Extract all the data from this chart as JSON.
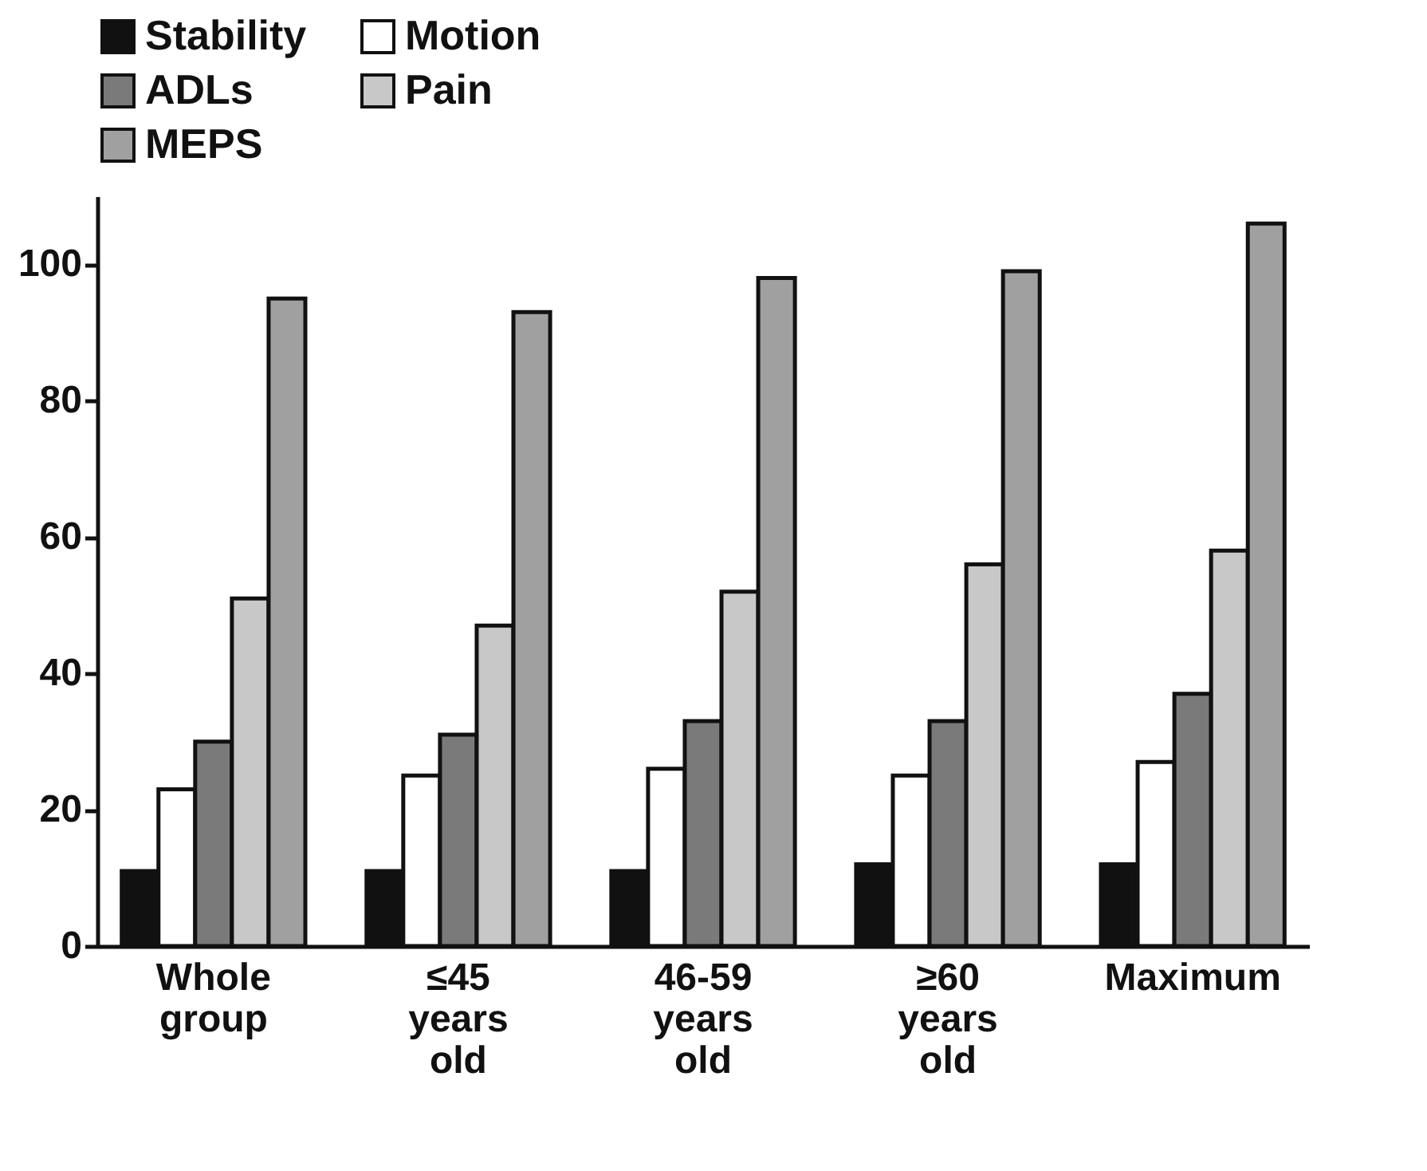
{
  "chart_data": {
    "type": "bar",
    "categories": [
      "Whole group",
      "≤45 years old",
      "46-59 years old",
      "≥60 years old",
      "Maximum"
    ],
    "series": [
      {
        "name": "Stability",
        "color": "#111111",
        "values": [
          11,
          11,
          11,
          12,
          12
        ]
      },
      {
        "name": "Motion",
        "color": "#ffffff",
        "values": [
          23,
          25,
          26,
          25,
          27
        ]
      },
      {
        "name": "ADLs",
        "color": "#7a7a7a",
        "values": [
          30,
          31,
          33,
          33,
          37
        ]
      },
      {
        "name": "Pain",
        "color": "#c8c8c8",
        "values": [
          51,
          47,
          52,
          56,
          58
        ]
      },
      {
        "name": "MEPS",
        "color": "#a0a0a0",
        "values": [
          95,
          93,
          98,
          99,
          106
        ]
      }
    ],
    "ylim": [
      0,
      110
    ],
    "yticks": [
      0,
      20,
      40,
      60,
      80,
      100
    ],
    "grid": false,
    "legend": "top"
  }
}
